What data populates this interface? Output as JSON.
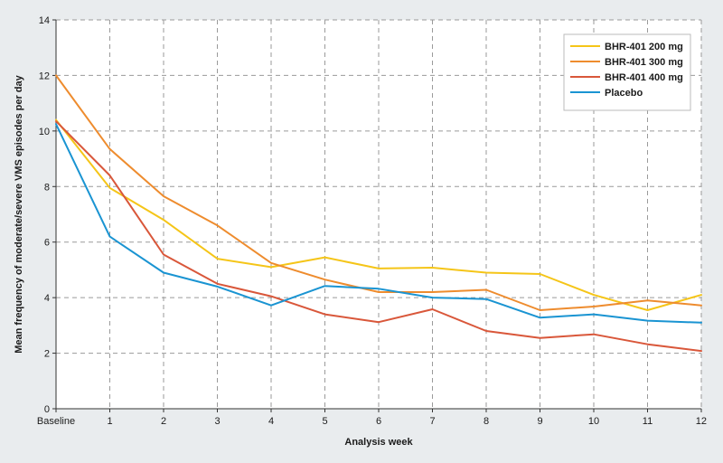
{
  "chart_data": {
    "type": "line",
    "title": "",
    "xlabel": "Analysis week",
    "ylabel": "Mean frequency of moderate/severe VMS episodes per day",
    "categories": [
      "Baseline",
      "1",
      "2",
      "3",
      "4",
      "5",
      "6",
      "7",
      "8",
      "9",
      "10",
      "11",
      "12"
    ],
    "ylim": [
      0,
      14
    ],
    "yticks": [
      0,
      2,
      4,
      6,
      8,
      10,
      12,
      14
    ],
    "grid": true,
    "legend_position": "top-right",
    "series": [
      {
        "name": "BHR-401 200 mg",
        "color": "#f5c518",
        "values": [
          10.4,
          7.95,
          6.8,
          5.4,
          5.1,
          5.45,
          5.05,
          5.08,
          4.9,
          4.85,
          4.1,
          3.55,
          4.1
        ]
      },
      {
        "name": "BHR-401 300 mg",
        "color": "#ee8c2e",
        "values": [
          12.0,
          9.35,
          7.65,
          6.6,
          5.25,
          4.65,
          4.2,
          4.2,
          4.28,
          3.55,
          3.68,
          3.9,
          3.72
        ]
      },
      {
        "name": "BHR-401 400 mg",
        "color": "#d9573a",
        "values": [
          10.35,
          8.4,
          5.55,
          4.5,
          4.05,
          3.4,
          3.12,
          3.58,
          2.8,
          2.55,
          2.68,
          2.32,
          2.08
        ]
      },
      {
        "name": "Placebo",
        "color": "#1a94d2",
        "values": [
          10.25,
          6.2,
          4.9,
          4.4,
          3.72,
          4.42,
          4.32,
          4.0,
          3.95,
          3.28,
          3.4,
          3.17,
          3.1
        ]
      }
    ]
  }
}
